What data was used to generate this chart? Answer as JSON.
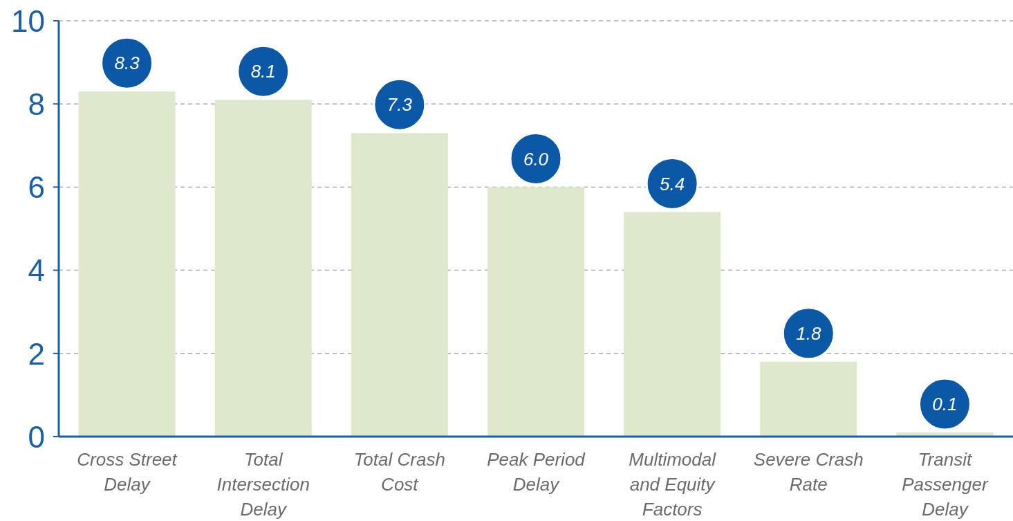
{
  "chart_data": {
    "type": "bar",
    "categories": [
      "Cross Street Delay",
      "Total Intersection Delay",
      "Total Crash Cost",
      "Peak Period Delay",
      "Multimodal and Equity Factors",
      "Severe Crash Rate",
      "Transit Passenger Delay"
    ],
    "values": [
      8.3,
      8.1,
      7.3,
      6.0,
      5.4,
      1.8,
      0.1
    ],
    "value_labels": [
      "8.3",
      "8.1",
      "7.3",
      "6.0",
      "5.4",
      "1.8",
      "0.1"
    ],
    "color": "#dde8cc",
    "ylim": [
      0,
      10
    ],
    "yticks": [
      0,
      2,
      4,
      6,
      8,
      10
    ],
    "grid": "y"
  }
}
